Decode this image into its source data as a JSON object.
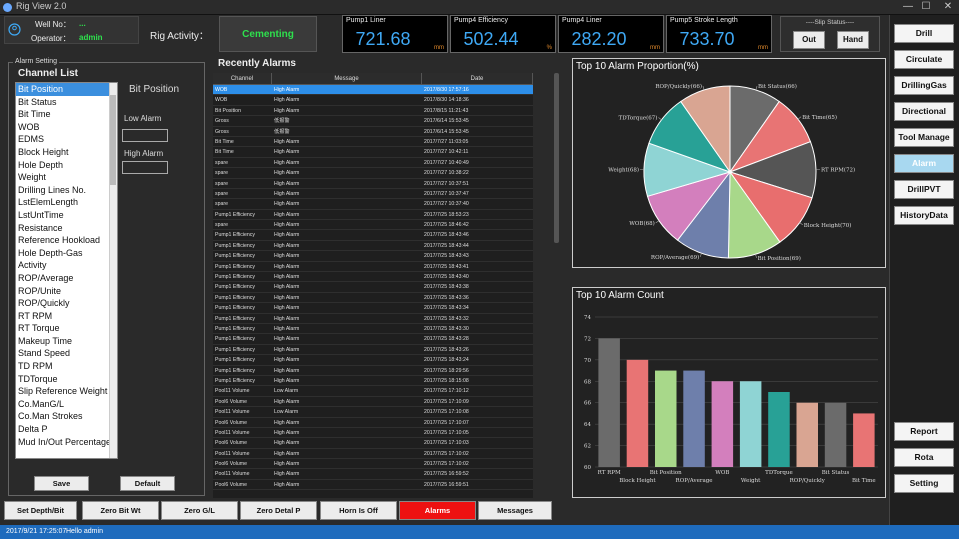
{
  "window": {
    "title": "Rig View 2.0",
    "min": "—",
    "max": "☐",
    "close": "✕"
  },
  "header": {
    "well_label": "Well No：",
    "well_value": "...",
    "operator_label": "Operator：",
    "operator_value": "admin",
    "rig_activity_label": "Rig Activity：",
    "rig_activity_value": "Cementing",
    "gauges": [
      {
        "label": "Pump1 Liner",
        "value": "721.68",
        "unit": "mm"
      },
      {
        "label": "Pump4 Efficiency",
        "value": "502.44",
        "unit": "%"
      },
      {
        "label": "Pump4 Liner",
        "value": "282.20",
        "unit": "mm"
      },
      {
        "label": "Pump5 Stroke Length",
        "value": "733.70",
        "unit": "mm"
      }
    ],
    "slip": {
      "title": "----Slip Status----",
      "out": "Out",
      "hand": "Hand"
    }
  },
  "alarm_setting": {
    "legend": "Alarm Setting",
    "title": "Channel List",
    "channels": [
      "Bit Position",
      "Bit Status",
      "Bit Time",
      "WOB",
      "EDMS",
      "Block Height",
      "Hole Depth",
      "Weight",
      "Drilling Lines No.",
      "LstElemLength",
      "LstUntTime",
      "Resistance",
      "Reference Hookload",
      "Hole Depth-Gas",
      "Activity",
      "ROP/Average",
      "ROP/Unite",
      "ROP/Quickly",
      "RT RPM",
      "RT Torque",
      "Makeup Time",
      "Stand Speed",
      "TD RPM",
      "TDTorque",
      "Slip Reference Weight",
      "Co.ManG/L",
      "Co.Man Strokes",
      "Delta P",
      "Mud In/Out Percentage"
    ],
    "selected_name": "Bit Position",
    "low_label": "Low Alarm",
    "high_label": "High Alarm",
    "save": "Save",
    "default": "Default"
  },
  "recent": {
    "title": "Recently Alarms",
    "headers": [
      "Channel",
      "Message",
      "Date"
    ],
    "rows": [
      [
        "WOB",
        "High Alarm",
        "2017/8/30 17:57:16"
      ],
      [
        "WOB",
        "High Alarm",
        "2017/8/30 14:18:36"
      ],
      [
        "Bit Position",
        "High Alarm",
        "2017/8/15 11:21:43"
      ],
      [
        "Gross",
        "低报警",
        "2017/6/14 15:53:45"
      ],
      [
        "Gross",
        "低报警",
        "2017/6/14 15:53:45"
      ],
      [
        "Bit Time",
        "High Alarm",
        "2017/7/27 11:03:05"
      ],
      [
        "Bit Time",
        "High Alarm",
        "2017/7/27 10:42:11"
      ],
      [
        "spare",
        "High Alarm",
        "2017/7/27 10:40:49"
      ],
      [
        "spare",
        "High Alarm",
        "2017/7/27 10:38:22"
      ],
      [
        "spare",
        "High Alarm",
        "2017/7/27 10:37:51"
      ],
      [
        "spare",
        "High Alarm",
        "2017/7/27 10:37:47"
      ],
      [
        "spare",
        "High Alarm",
        "2017/7/27 10:37:40"
      ],
      [
        "Pump1 Efficiency",
        "High Alarm",
        "2017/7/25 18:53:23"
      ],
      [
        "spare",
        "High Alarm",
        "2017/7/25 18:46:42"
      ],
      [
        "Pump1 Efficiency",
        "High Alarm",
        "2017/7/25 18:43:46"
      ],
      [
        "Pump1 Efficiency",
        "High Alarm",
        "2017/7/25 18:43:44"
      ],
      [
        "Pump1 Efficiency",
        "High Alarm",
        "2017/7/25 18:43:43"
      ],
      [
        "Pump1 Efficiency",
        "High Alarm",
        "2017/7/25 18:43:41"
      ],
      [
        "Pump1 Efficiency",
        "High Alarm",
        "2017/7/25 18:43:40"
      ],
      [
        "Pump1 Efficiency",
        "High Alarm",
        "2017/7/25 18:43:38"
      ],
      [
        "Pump1 Efficiency",
        "High Alarm",
        "2017/7/25 18:43:36"
      ],
      [
        "Pump1 Efficiency",
        "High Alarm",
        "2017/7/25 18:43:34"
      ],
      [
        "Pump1 Efficiency",
        "High Alarm",
        "2017/7/25 18:43:32"
      ],
      [
        "Pump1 Efficiency",
        "High Alarm",
        "2017/7/25 18:43:30"
      ],
      [
        "Pump1 Efficiency",
        "High Alarm",
        "2017/7/25 18:43:28"
      ],
      [
        "Pump1 Efficiency",
        "High Alarm",
        "2017/7/25 18:43:26"
      ],
      [
        "Pump1 Efficiency",
        "High Alarm",
        "2017/7/25 18:43:24"
      ],
      [
        "Pump1 Efficiency",
        "High Alarm",
        "2017/7/25 18:29:56"
      ],
      [
        "Pump1 Efficiency",
        "High Alarm",
        "2017/7/25 18:15:08"
      ],
      [
        "Pool11 Volume",
        "Low Alarm",
        "2017/7/25 17:10:12"
      ],
      [
        "Pool6 Volume",
        "High Alarm",
        "2017/7/25 17:10:09"
      ],
      [
        "Pool11 Volume",
        "Low Alarm",
        "2017/7/25 17:10:08"
      ],
      [
        "Pool6 Volume",
        "High Alarm",
        "2017/7/25 17:10:07"
      ],
      [
        "Pool11 Volume",
        "High Alarm",
        "2017/7/25 17:10:05"
      ],
      [
        "Pool6 Volume",
        "High Alarm",
        "2017/7/25 17:10:03"
      ],
      [
        "Pool11 Volume",
        "High Alarm",
        "2017/7/25 17:10:02"
      ],
      [
        "Pool6 Volume",
        "High Alarm",
        "2017/7/25 17:10:02"
      ],
      [
        "Pool11 Volume",
        "High Alarm",
        "2017/7/25 16:59:52"
      ],
      [
        "Pool6 Volume",
        "High Alarm",
        "2017/7/25 16:59:51"
      ]
    ]
  },
  "chart_data": [
    {
      "type": "pie",
      "title": "Top 10 Alarm Proportion(%)",
      "categories": [
        "Bit Status(66)",
        "Bit Time(65)",
        "RT RPM(72)",
        "Block Height(70)",
        "Bit Position(69)",
        "ROP/Average(69)",
        "WOB(68)",
        "Weight(68)",
        "TDTorque(67)",
        "ROP/Quickly(66)"
      ],
      "values": [
        66,
        65,
        72,
        70,
        69,
        69,
        68,
        68,
        67,
        66
      ],
      "colors": [
        "#6b6b6b",
        "#e87474",
        "#555555",
        "#e86e6e",
        "#a8d88a",
        "#6e7fab",
        "#d37fbd",
        "#8fd4d4",
        "#28a196",
        "#d9a592"
      ]
    },
    {
      "type": "bar",
      "title": "Top 10 Alarm Count",
      "categories": [
        "RT RPM",
        "Block Height",
        "Bit Position",
        "ROP/Average",
        "WOB",
        "Weight",
        "TDTorque",
        "ROP/Quickly",
        "Bit Status",
        "Bit Time"
      ],
      "values": [
        72,
        70,
        69,
        69,
        68,
        68,
        67,
        66,
        66,
        65
      ],
      "ylim": [
        60,
        74
      ],
      "yticks": [
        60,
        62,
        64,
        66,
        68,
        70,
        72,
        74
      ],
      "colors": [
        "#6b6b6b",
        "#e87474",
        "#a8d88a",
        "#6e7fab",
        "#d37fbd",
        "#8fd4d4",
        "#28a196",
        "#d9a592",
        "#6b6b6b",
        "#e87474"
      ]
    }
  ],
  "sidebar": {
    "top": [
      "Drill",
      "Circulate",
      "DrillingGas",
      "Directional",
      "Tool Manage",
      "Alarm",
      "DrillPVT",
      "HistoryData"
    ],
    "bottom": [
      "Report",
      "Rota",
      "Setting"
    ],
    "active": "Alarm"
  },
  "bottom_buttons": [
    "Set Depth/Bit",
    "Zero Bit Wt",
    "Zero G/L",
    "Zero Detal P",
    "Horn Is Off",
    "Alarms",
    "Messages"
  ],
  "status": {
    "time": "2017/9/21 17:25:07",
    "user": "Hello admin"
  }
}
